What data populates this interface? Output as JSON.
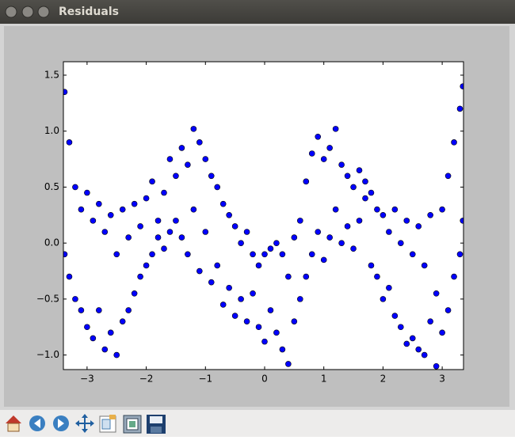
{
  "window": {
    "title": "Residuals"
  },
  "chart_data": {
    "type": "scatter",
    "color": "#0000ff",
    "grid": false,
    "xlim": [
      -3.4,
      3.36
    ],
    "ylim": [
      -1.13,
      1.62
    ],
    "xticks": [
      {
        "value": -3,
        "label": "−3"
      },
      {
        "value": -2,
        "label": "−2"
      },
      {
        "value": -1,
        "label": "−1"
      },
      0,
      1,
      2,
      3
    ],
    "yticks": [
      {
        "value": -1,
        "label": "−1.0"
      },
      {
        "value": -0.5,
        "label": "−0.5"
      },
      {
        "value": 0,
        "label": "0.0"
      },
      {
        "value": 0.5,
        "label": "0.5"
      },
      {
        "value": 1,
        "label": "1.0"
      },
      {
        "value": 1.5,
        "label": "1.5"
      }
    ],
    "x": [
      -3.38,
      -3.38,
      -3.3,
      -3.3,
      -3.2,
      -3.2,
      -3.1,
      -3.1,
      -3.0,
      -3.0,
      -2.9,
      -2.9,
      -2.8,
      -2.8,
      -2.7,
      -2.7,
      -2.6,
      -2.6,
      -2.5,
      -2.5,
      -2.4,
      -2.4,
      -2.3,
      -2.3,
      -2.2,
      -2.2,
      -2.1,
      -2.1,
      -2.0,
      -2.0,
      -1.9,
      -1.9,
      -1.8,
      -1.8,
      -1.7,
      -1.7,
      -1.6,
      -1.6,
      -1.5,
      -1.5,
      -1.4,
      -1.4,
      -1.3,
      -1.3,
      -1.2,
      -1.2,
      -1.1,
      -1.1,
      -1.0,
      -1.0,
      -0.9,
      -0.9,
      -0.8,
      -0.8,
      -0.7,
      -0.7,
      -0.6,
      -0.6,
      -0.5,
      -0.5,
      -0.4,
      -0.4,
      -0.3,
      -0.3,
      -0.2,
      -0.2,
      -0.1,
      -0.1,
      0.0,
      0.0,
      0.1,
      0.1,
      0.2,
      0.2,
      0.3,
      0.3,
      0.4,
      0.4,
      0.5,
      0.5,
      0.6,
      0.6,
      0.7,
      0.7,
      0.8,
      0.8,
      0.9,
      0.9,
      1.0,
      1.0,
      1.1,
      1.1,
      1.2,
      1.2,
      1.3,
      1.3,
      1.4,
      1.4,
      1.5,
      1.5,
      1.6,
      1.6,
      1.7,
      1.7,
      1.8,
      1.8,
      1.9,
      1.9,
      2.0,
      2.0,
      2.1,
      2.1,
      2.2,
      2.2,
      2.3,
      2.3,
      2.4,
      2.4,
      2.5,
      2.5,
      2.6,
      2.6,
      2.7,
      2.7,
      2.8,
      2.8,
      2.9,
      2.9,
      3.0,
      3.0,
      3.1,
      3.1,
      3.2,
      3.2,
      3.3,
      3.3,
      3.35,
      3.35
    ],
    "values": [
      1.35,
      -0.1,
      0.9,
      -0.3,
      0.5,
      -0.5,
      0.3,
      -0.6,
      0.45,
      -0.75,
      0.2,
      -0.85,
      0.35,
      -0.6,
      0.1,
      -0.95,
      0.25,
      -0.8,
      -0.1,
      -1.0,
      0.3,
      -0.7,
      0.05,
      -0.6,
      0.35,
      -0.45,
      0.15,
      -0.3,
      0.4,
      -0.2,
      0.55,
      -0.1,
      0.2,
      0.05,
      0.45,
      -0.05,
      0.75,
      0.1,
      0.6,
      0.2,
      0.85,
      0.05,
      0.7,
      -0.1,
      1.02,
      0.3,
      0.9,
      -0.25,
      0.75,
      0.1,
      0.6,
      -0.35,
      0.5,
      -0.2,
      0.35,
      -0.55,
      0.25,
      -0.4,
      0.15,
      -0.65,
      0.0,
      -0.5,
      0.1,
      -0.7,
      -0.1,
      -0.45,
      -0.2,
      -0.75,
      -0.1,
      -0.88,
      -0.05,
      -0.6,
      0.0,
      -0.8,
      -0.1,
      -0.95,
      -0.3,
      -1.08,
      0.05,
      -0.7,
      0.2,
      -0.5,
      0.55,
      -0.3,
      0.8,
      -0.1,
      0.95,
      0.1,
      0.75,
      -0.15,
      0.85,
      0.05,
      1.02,
      0.3,
      0.7,
      0.0,
      0.6,
      0.15,
      0.5,
      -0.05,
      0.65,
      0.2,
      0.55,
      0.4,
      0.45,
      -0.2,
      0.3,
      -0.3,
      0.25,
      -0.5,
      0.1,
      -0.4,
      0.3,
      -0.65,
      0.0,
      -0.75,
      0.2,
      -0.9,
      -0.1,
      -0.85,
      0.15,
      -0.95,
      -0.2,
      -1.0,
      0.25,
      -0.7,
      -0.45,
      -1.1,
      0.3,
      -0.8,
      0.6,
      -0.6,
      0.9,
      -0.3,
      1.2,
      -0.1,
      1.4,
      0.2
    ]
  }
}
